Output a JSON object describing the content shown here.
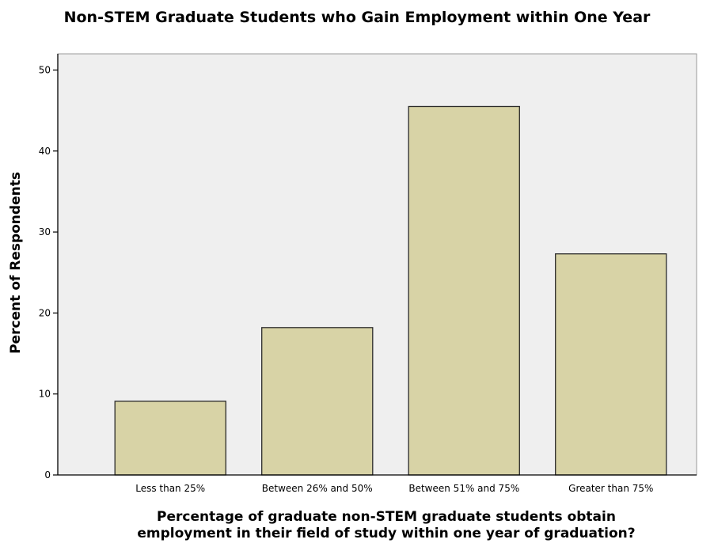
{
  "chart_data": {
    "type": "bar",
    "title": "Non-STEM Graduate Students who Gain Employment within One Year",
    "categories": [
      "Less than 25%",
      "Between 26% and 50%",
      "Between 51% and 75%",
      "Greater than 75%"
    ],
    "values": [
      9.1,
      18.2,
      45.5,
      27.3
    ],
    "xlabel_lines": [
      "Percentage of graduate non-STEM graduate students obtain",
      "employment in their field of study within one year of graduation?"
    ],
    "ylabel": "Percent of Respondents",
    "ylim": [
      0,
      52
    ],
    "yticks": [
      0,
      10,
      20,
      30,
      40,
      50
    ],
    "grid": false,
    "legend": "none",
    "colors": {
      "bar_fill": "#d8d3a6",
      "bar_stroke": "#2b2b2b",
      "plot_background": "#efefef",
      "axis": "#000000"
    }
  }
}
